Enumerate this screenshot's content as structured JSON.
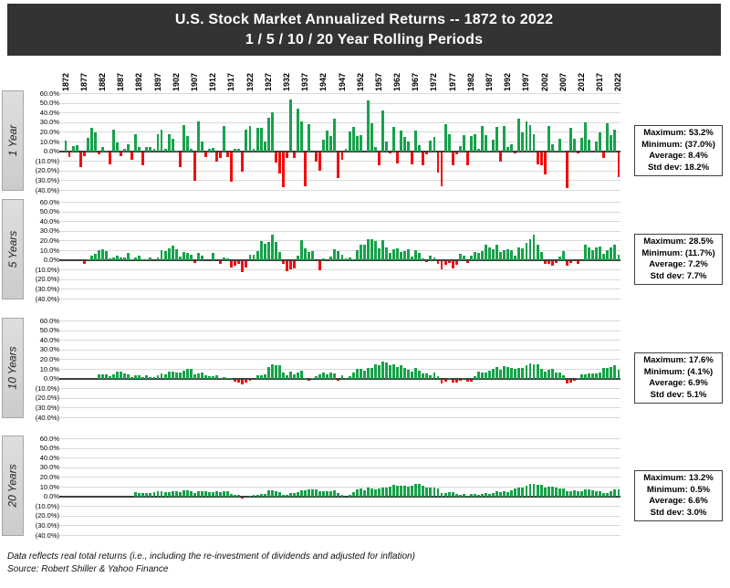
{
  "title": {
    "line1": "U.S. Stock Market Annualized Returns  -- 1872 to 2022",
    "line2": "1 / 5 / 10 / 20 Year Rolling Periods"
  },
  "footer": {
    "line1": "Data reflects real total returns (i.e., including the re-investment of dividends and adjusted for inflation)",
    "line2": "Source: Robert Shiller & Yahoo Finance"
  },
  "chart_data": {
    "type": "bar",
    "title": "U.S. Stock Market Annualized Returns -- 1872 to 2022, 1/5/10/20 Year Rolling Periods",
    "x_tick_years": [
      1872,
      1877,
      1882,
      1887,
      1892,
      1897,
      1902,
      1907,
      1912,
      1917,
      1922,
      1927,
      1932,
      1937,
      1942,
      1947,
      1952,
      1957,
      1962,
      1967,
      1972,
      1977,
      1982,
      1987,
      1992,
      1997,
      2002,
      2007,
      2012,
      2017,
      2022
    ],
    "y_ticks": [
      "60.0%",
      "50.0%",
      "40.0%",
      "30.0%",
      "20.0%",
      "10.0%",
      "0.0%",
      "(10.0%)",
      "(20.0%)",
      "(30.0%)",
      "(40.0%)"
    ],
    "ylim": [
      -40,
      60
    ],
    "grid": true,
    "annual_returns_pct": {
      "start_year": 1872,
      "end_year": 2022,
      "values": [
        11,
        -5,
        5,
        6,
        -15,
        -4,
        14,
        24,
        19,
        -2,
        4,
        1,
        -12,
        22,
        9,
        -4,
        2,
        7,
        -8,
        18,
        4,
        -13,
        4,
        4,
        2,
        18,
        22,
        2,
        18,
        13,
        1,
        -15,
        27,
        16,
        2,
        -29,
        31,
        10,
        -5,
        2,
        3,
        -9,
        -6,
        26,
        -5,
        -30,
        2,
        2,
        -20,
        22,
        26,
        2,
        24,
        24,
        10,
        35,
        40,
        -10,
        -22,
        -36,
        -6,
        53.2,
        -6,
        44,
        31,
        -35,
        28,
        0,
        -9,
        -19,
        12,
        21,
        16,
        34,
        -26,
        -8,
        2,
        20,
        25,
        16,
        17,
        0,
        52,
        29,
        4,
        -13,
        42,
        10,
        -1,
        25,
        -11,
        21,
        15,
        10,
        -12,
        21,
        6,
        -13,
        -2,
        11,
        15,
        -21,
        -35,
        28,
        18,
        -13,
        -2,
        5,
        17,
        -13,
        16,
        18,
        2,
        26,
        17,
        1,
        12,
        25,
        -9,
        26,
        4,
        7,
        -1,
        34,
        19,
        31,
        27,
        18,
        -12,
        -13,
        -23,
        26,
        7,
        1,
        13,
        1,
        -37,
        24,
        13,
        -1,
        14,
        30,
        12,
        0,
        10,
        19,
        -6,
        29,
        17,
        22,
        -25
      ]
    },
    "derivation_note": "5/10/20-year panels plot rolling annualized (geometric) returns of the annual real total return series; each bar is positioned at the period end year.",
    "panels": [
      {
        "label": "1 Year",
        "window_years": 1,
        "stats_lines": [
          "Maximum: 53.2%",
          "Minimum: (37.0%)",
          "Average: 8.4%",
          "Std dev: 18.2%"
        ]
      },
      {
        "label": "5 Years",
        "window_years": 5,
        "stats_lines": [
          "Maximum: 28.5%",
          "Minimum: (11.7%)",
          "Average: 7.2%",
          "Std dev: 7.7%"
        ]
      },
      {
        "label": "10 Years",
        "window_years": 10,
        "stats_lines": [
          "Maximum: 17.6%",
          "Minimum: (4.1%)",
          "Average: 6.9%",
          "Std dev: 5.1%"
        ]
      },
      {
        "label": "20 Years",
        "window_years": 20,
        "stats_lines": [
          "Maximum: 13.2%",
          "Minimum: 0.5%",
          "Average: 6.6%",
          "Std dev: 3.0%"
        ]
      }
    ],
    "colors": {
      "positive": "#17A24B",
      "negative": "#F20D0D",
      "gridline": "#d9d9d9",
      "zeroline": "#3f3f3f",
      "title_bg": "#333333"
    }
  }
}
